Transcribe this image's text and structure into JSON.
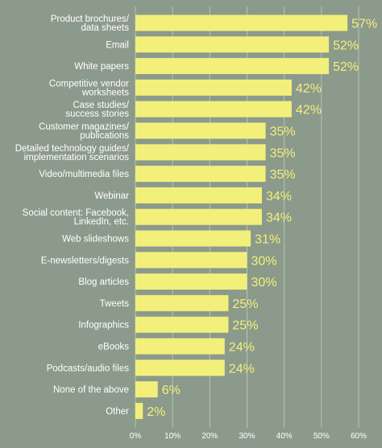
{
  "chart_data": {
    "type": "bar",
    "orientation": "horizontal",
    "categories": [
      [
        "Product brochures/",
        "data sheets"
      ],
      [
        "Email"
      ],
      [
        "White papers"
      ],
      [
        "Competitive vendor",
        "worksheets"
      ],
      [
        "Case studies/",
        "success stories"
      ],
      [
        "Customer magazines/",
        "publications"
      ],
      [
        "Detailed technology guides/",
        "implementation scenarios"
      ],
      [
        "Video/multimedia files"
      ],
      [
        "Webinar"
      ],
      [
        "Social content: Facebook,",
        "LinkedIn, etc."
      ],
      [
        "Web slideshows"
      ],
      [
        "E-newsletters/digests"
      ],
      [
        "Blog articles"
      ],
      [
        "Tweets"
      ],
      [
        "Infographics"
      ],
      [
        "eBooks"
      ],
      [
        "Podcasts/audio files"
      ],
      [
        "None of the above"
      ],
      [
        "Other"
      ]
    ],
    "values": [
      57,
      52,
      52,
      42,
      42,
      35,
      35,
      35,
      34,
      34,
      31,
      30,
      30,
      25,
      25,
      24,
      24,
      6,
      2
    ],
    "value_labels": [
      "57%",
      "52%",
      "52%",
      "42%",
      "42%",
      "35%",
      "35%",
      "35%",
      "34%",
      "34%",
      "31%",
      "30%",
      "30%",
      "25%",
      "25%",
      "24%",
      "24%",
      "6%",
      "2%"
    ],
    "xlim": [
      0,
      60
    ],
    "xticks": [
      "0%",
      "10%",
      "20%",
      "30%",
      "40%",
      "50%",
      "60%"
    ],
    "grid": true,
    "bar_color": "#f2f07a",
    "value_label_color": "#f2f07a",
    "background_color": "#8c9a8c",
    "grid_color": "#b7c2b5",
    "text_color": "#ffffff"
  }
}
